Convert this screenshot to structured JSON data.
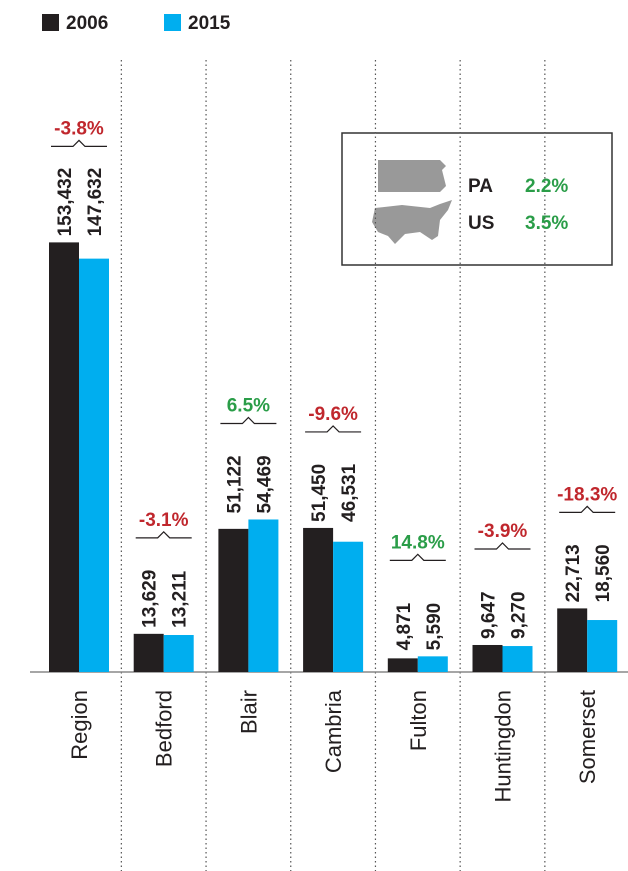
{
  "chart_data": {
    "type": "bar",
    "categories": [
      "Region",
      "Bedford",
      "Blair",
      "Cambria",
      "Fulton",
      "Huntingdon",
      "Somerset"
    ],
    "series": [
      {
        "name": "2006",
        "color": "#231f20",
        "values": [
          153432,
          13629,
          51122,
          51450,
          4871,
          9647,
          22713
        ],
        "value_labels": [
          "153,432",
          "13,629",
          "51,122",
          "51,450",
          "4,871",
          "9,647",
          "22,713"
        ]
      },
      {
        "name": "2015",
        "color": "#00aeef",
        "values": [
          147632,
          13211,
          54469,
          46531,
          5590,
          9270,
          18560
        ],
        "value_labels": [
          "147,632",
          "13,211",
          "54,469",
          "46,531",
          "5,590",
          "9,270",
          "18,560"
        ]
      }
    ],
    "changes": [
      {
        "value": -3.8,
        "label": "-3.8%"
      },
      {
        "value": -3.1,
        "label": "-3.1%"
      },
      {
        "value": 6.5,
        "label": "6.5%"
      },
      {
        "value": -9.6,
        "label": "-9.6%"
      },
      {
        "value": 14.8,
        "label": "14.8%"
      },
      {
        "value": -3.9,
        "label": "-3.9%"
      },
      {
        "value": -18.3,
        "label": "-18.3%"
      }
    ],
    "inset": [
      {
        "name": "PA",
        "value": 2.2,
        "label": "2.2%"
      },
      {
        "name": "US",
        "value": 3.5,
        "label": "3.5%"
      }
    ],
    "ylim": [
      0,
      160000
    ]
  }
}
